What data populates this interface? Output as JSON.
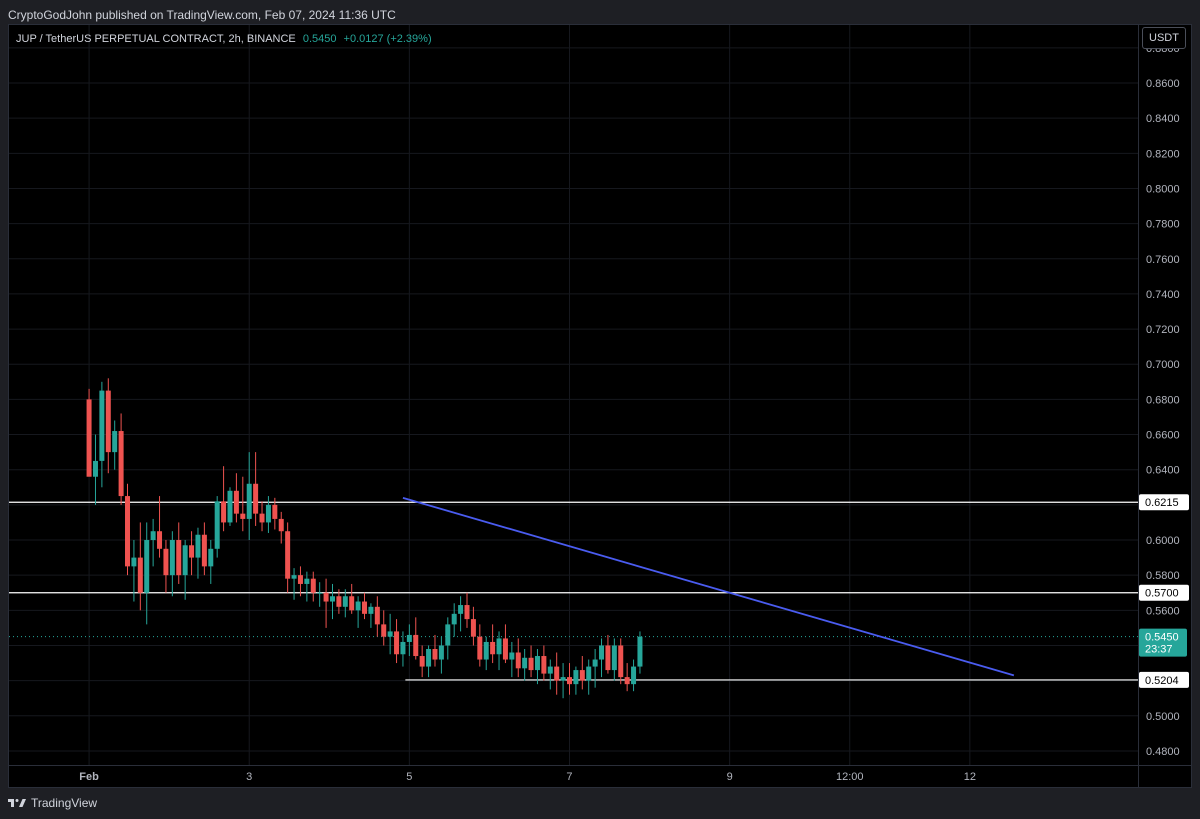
{
  "header": {
    "published_text": "CryptoGodJohn published on TradingView.com, Feb 07, 2024 11:36 UTC"
  },
  "legend": {
    "symbol": "JUP / TetherUS PERPETUAL CONTRACT, 2h, BINANCE",
    "last": "0.5450",
    "change": "+0.0127 (+2.39%)"
  },
  "currency_button": "USDT",
  "footer": {
    "brand": "TradingView",
    "logo_icon": "tradingview-logo-icon"
  },
  "colors": {
    "up": "#26a69a",
    "down": "#ef5350",
    "trendline": "#4a5cf0",
    "level": "#ffffff",
    "current": "#26a69a"
  },
  "chart_data": {
    "type": "candlestick",
    "price_ticks": [
      "0.8800",
      "0.8600",
      "0.8400",
      "0.8200",
      "0.8000",
      "0.7800",
      "0.7600",
      "0.7400",
      "0.7200",
      "0.7000",
      "0.6800",
      "0.6600",
      "0.6400",
      "0.6200",
      "0.6000",
      "0.5800",
      "0.5600",
      "0.5400",
      "0.5200",
      "0.5000",
      "0.4800"
    ],
    "time_ticks": [
      "Feb",
      "3",
      "5",
      "7",
      "9",
      "12:00",
      "12"
    ],
    "ylim": [
      0.472,
      0.893
    ],
    "grid": true,
    "horizontal_levels": [
      {
        "value": 0.6215,
        "label": "0.6215"
      },
      {
        "value": 0.57,
        "label": "0.5700"
      },
      {
        "value": 0.5204,
        "label": "0.5204",
        "partial": true
      }
    ],
    "current_price": {
      "label": "0.5450",
      "countdown": "23:37",
      "value": 0.545
    },
    "trendline": {
      "from": {
        "t": 4.42,
        "price": 0.624
      },
      "to": {
        "t": 12.05,
        "price": 0.523
      }
    },
    "candles": [
      [
        0.5,
        0.68,
        0.686,
        0.64,
        0.636
      ],
      [
        0.58,
        0.636,
        0.66,
        0.62,
        0.645
      ],
      [
        0.66,
        0.645,
        0.69,
        0.63,
        0.685
      ],
      [
        0.74,
        0.685,
        0.692,
        0.638,
        0.65
      ],
      [
        0.82,
        0.65,
        0.668,
        0.64,
        0.662
      ],
      [
        0.9,
        0.662,
        0.672,
        0.62,
        0.625
      ],
      [
        0.98,
        0.625,
        0.632,
        0.58,
        0.585
      ],
      [
        1.06,
        0.585,
        0.6,
        0.565,
        0.59
      ],
      [
        1.14,
        0.59,
        0.61,
        0.56,
        0.57
      ],
      [
        1.22,
        0.57,
        0.61,
        0.552,
        0.6
      ],
      [
        1.3,
        0.6,
        0.612,
        0.585,
        0.605
      ],
      [
        1.38,
        0.605,
        0.625,
        0.59,
        0.595
      ],
      [
        1.46,
        0.595,
        0.6,
        0.57,
        0.58
      ],
      [
        1.54,
        0.58,
        0.605,
        0.568,
        0.6
      ],
      [
        1.62,
        0.6,
        0.61,
        0.575,
        0.58
      ],
      [
        1.7,
        0.58,
        0.6,
        0.566,
        0.597
      ],
      [
        1.78,
        0.597,
        0.605,
        0.58,
        0.59
      ],
      [
        1.86,
        0.59,
        0.607,
        0.578,
        0.603
      ],
      [
        1.94,
        0.603,
        0.61,
        0.58,
        0.585
      ],
      [
        2.02,
        0.585,
        0.6,
        0.575,
        0.595
      ],
      [
        2.1,
        0.595,
        0.625,
        0.59,
        0.622
      ],
      [
        2.18,
        0.622,
        0.642,
        0.605,
        0.61
      ],
      [
        2.26,
        0.61,
        0.63,
        0.608,
        0.628
      ],
      [
        2.34,
        0.628,
        0.638,
        0.61,
        0.615
      ],
      [
        2.42,
        0.615,
        0.636,
        0.605,
        0.612
      ],
      [
        2.5,
        0.612,
        0.65,
        0.6,
        0.632
      ],
      [
        2.58,
        0.632,
        0.65,
        0.608,
        0.615
      ],
      [
        2.66,
        0.615,
        0.622,
        0.605,
        0.61
      ],
      [
        2.74,
        0.61,
        0.625,
        0.604,
        0.62
      ],
      [
        2.82,
        0.62,
        0.624,
        0.606,
        0.612
      ],
      [
        2.9,
        0.612,
        0.616,
        0.598,
        0.605
      ],
      [
        2.98,
        0.605,
        0.61,
        0.57,
        0.578
      ],
      [
        3.06,
        0.578,
        0.584,
        0.566,
        0.58
      ],
      [
        3.14,
        0.58,
        0.585,
        0.568,
        0.575
      ],
      [
        3.22,
        0.575,
        0.582,
        0.565,
        0.578
      ],
      [
        3.3,
        0.578,
        0.582,
        0.565,
        0.57
      ],
      [
        3.38,
        0.57,
        0.576,
        0.562,
        0.57
      ],
      [
        3.46,
        0.57,
        0.578,
        0.55,
        0.565
      ],
      [
        3.54,
        0.565,
        0.575,
        0.555,
        0.568
      ],
      [
        3.62,
        0.568,
        0.572,
        0.558,
        0.562
      ],
      [
        3.7,
        0.562,
        0.572,
        0.556,
        0.568
      ],
      [
        3.78,
        0.568,
        0.575,
        0.558,
        0.56
      ],
      [
        3.86,
        0.56,
        0.568,
        0.55,
        0.565
      ],
      [
        3.94,
        0.565,
        0.57,
        0.555,
        0.558
      ],
      [
        4.02,
        0.558,
        0.564,
        0.55,
        0.562
      ],
      [
        4.1,
        0.562,
        0.568,
        0.545,
        0.552
      ],
      [
        4.18,
        0.552,
        0.56,
        0.54,
        0.545
      ],
      [
        4.26,
        0.545,
        0.558,
        0.535,
        0.548
      ],
      [
        4.34,
        0.548,
        0.555,
        0.53,
        0.535
      ],
      [
        4.42,
        0.535,
        0.548,
        0.528,
        0.542
      ],
      [
        4.5,
        0.542,
        0.552,
        0.534,
        0.546
      ],
      [
        4.58,
        0.546,
        0.556,
        0.532,
        0.534
      ],
      [
        4.66,
        0.534,
        0.54,
        0.522,
        0.528
      ],
      [
        4.74,
        0.528,
        0.54,
        0.522,
        0.538
      ],
      [
        4.82,
        0.538,
        0.546,
        0.528,
        0.532
      ],
      [
        4.9,
        0.532,
        0.545,
        0.524,
        0.54
      ],
      [
        4.98,
        0.54,
        0.556,
        0.532,
        0.552
      ],
      [
        5.06,
        0.552,
        0.564,
        0.545,
        0.558
      ],
      [
        5.14,
        0.558,
        0.568,
        0.548,
        0.563
      ],
      [
        5.22,
        0.563,
        0.57,
        0.55,
        0.555
      ],
      [
        5.3,
        0.555,
        0.562,
        0.54,
        0.545
      ],
      [
        5.38,
        0.545,
        0.552,
        0.528,
        0.532
      ],
      [
        5.46,
        0.532,
        0.545,
        0.526,
        0.542
      ],
      [
        5.54,
        0.542,
        0.552,
        0.53,
        0.535
      ],
      [
        5.62,
        0.535,
        0.548,
        0.526,
        0.544
      ],
      [
        5.7,
        0.544,
        0.552,
        0.53,
        0.532
      ],
      [
        5.78,
        0.532,
        0.542,
        0.522,
        0.536
      ],
      [
        5.86,
        0.536,
        0.544,
        0.522,
        0.527
      ],
      [
        5.94,
        0.527,
        0.538,
        0.52,
        0.533
      ],
      [
        6.02,
        0.533,
        0.54,
        0.522,
        0.526
      ],
      [
        6.1,
        0.526,
        0.538,
        0.518,
        0.534
      ],
      [
        6.18,
        0.534,
        0.54,
        0.52,
        0.524
      ],
      [
        6.26,
        0.524,
        0.532,
        0.515,
        0.528
      ],
      [
        6.34,
        0.528,
        0.536,
        0.512,
        0.52
      ],
      [
        6.42,
        0.52,
        0.53,
        0.51,
        0.522
      ],
      [
        6.5,
        0.522,
        0.53,
        0.512,
        0.518
      ],
      [
        6.58,
        0.518,
        0.528,
        0.512,
        0.526
      ],
      [
        6.66,
        0.526,
        0.534,
        0.515,
        0.52
      ],
      [
        6.74,
        0.52,
        0.532,
        0.512,
        0.528
      ],
      [
        6.82,
        0.528,
        0.538,
        0.516,
        0.532
      ],
      [
        6.9,
        0.532,
        0.544,
        0.522,
        0.54
      ],
      [
        6.98,
        0.54,
        0.546,
        0.524,
        0.526
      ],
      [
        7.06,
        0.526,
        0.544,
        0.52,
        0.54
      ],
      [
        7.14,
        0.54,
        0.544,
        0.518,
        0.522
      ],
      [
        7.22,
        0.522,
        0.53,
        0.514,
        0.518
      ],
      [
        7.3,
        0.518,
        0.532,
        0.514,
        0.528
      ],
      [
        7.38,
        0.528,
        0.548,
        0.524,
        0.545
      ]
    ],
    "x_range": [
      -0.5,
      13.6
    ]
  }
}
